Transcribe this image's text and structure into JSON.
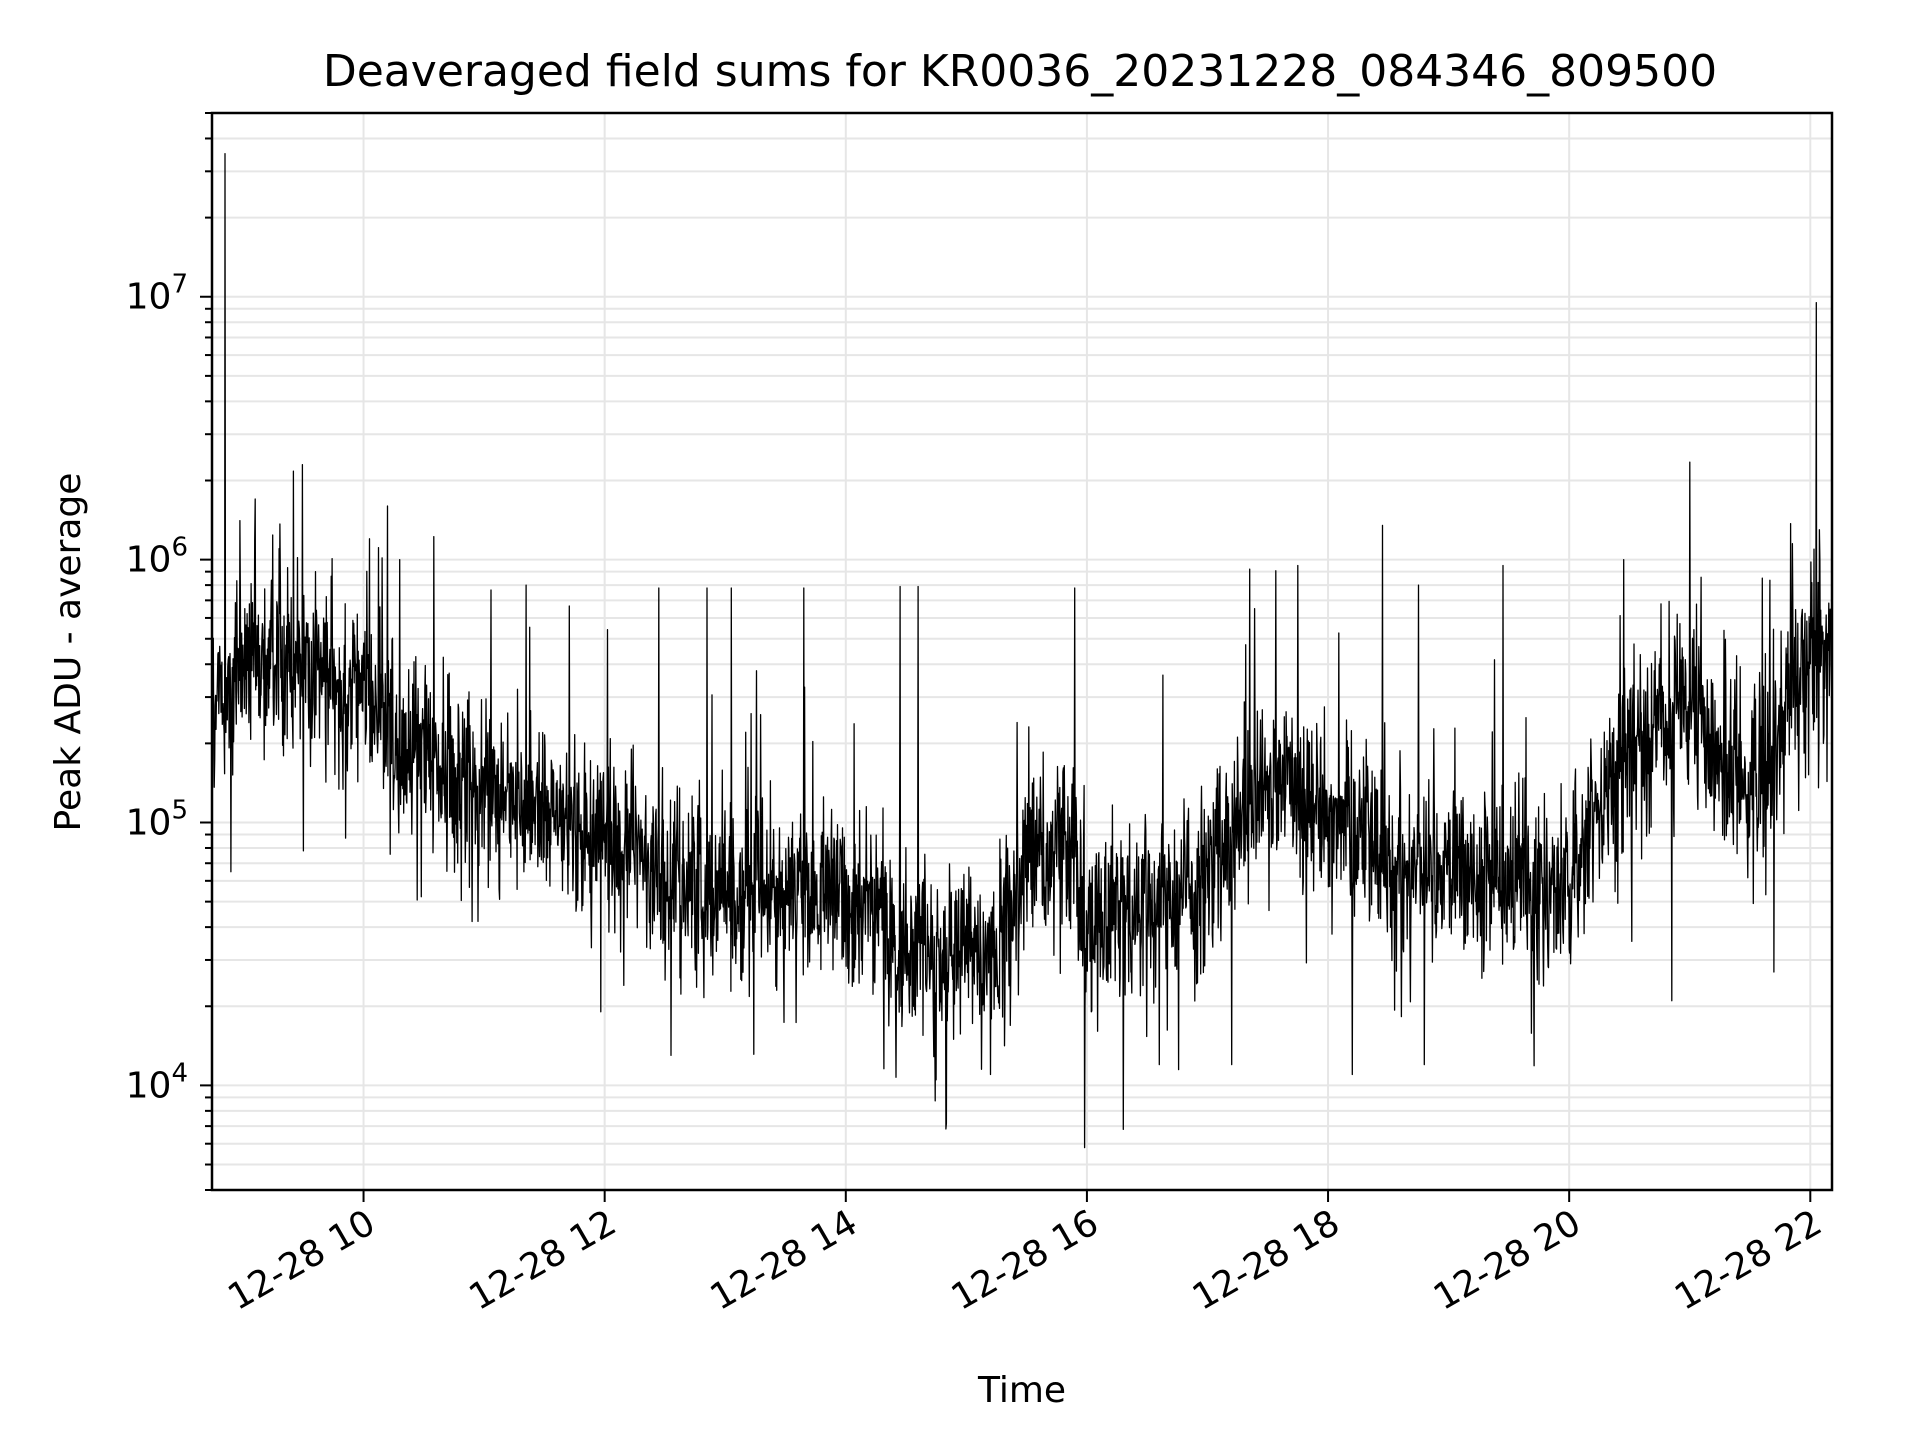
{
  "chart_data": {
    "type": "line",
    "title": "Deaveraged field sums for KR0036_20231228_084346_809500",
    "xlabel": "Time",
    "ylabel": "Peak ADU - average",
    "yscale": "log",
    "xlim": [
      8.743,
      22.18
    ],
    "ylim": [
      4000,
      50000000
    ],
    "grid": true,
    "x_ticks": [
      {
        "value": 10,
        "label": "12-28 10"
      },
      {
        "value": 12,
        "label": "12-28 12"
      },
      {
        "value": 14,
        "label": "12-28 14"
      },
      {
        "value": 16,
        "label": "12-28 16"
      },
      {
        "value": 18,
        "label": "12-28 18"
      },
      {
        "value": 20,
        "label": "12-28 20"
      },
      {
        "value": 22,
        "label": "12-28 22"
      }
    ],
    "y_ticks": [
      {
        "value": 10000,
        "base": "10",
        "exp": "4"
      },
      {
        "value": 100000,
        "base": "10",
        "exp": "5"
      },
      {
        "value": 1000000,
        "base": "10",
        "exp": "6"
      },
      {
        "value": 10000000,
        "base": "10",
        "exp": "7"
      }
    ],
    "series_style": {
      "color": "#000000"
    },
    "baseline": [
      [
        8.75,
        250000
      ],
      [
        9.0,
        400000
      ],
      [
        9.5,
        420000
      ],
      [
        10.0,
        300000
      ],
      [
        10.5,
        180000
      ],
      [
        11.0,
        130000
      ],
      [
        11.5,
        110000
      ],
      [
        12.0,
        90000
      ],
      [
        12.5,
        65000
      ],
      [
        13.0,
        55000
      ],
      [
        13.5,
        50000
      ],
      [
        14.0,
        55000
      ],
      [
        14.3,
        40000
      ],
      [
        14.7,
        32000
      ],
      [
        15.0,
        30000
      ],
      [
        15.3,
        35000
      ],
      [
        15.5,
        70000
      ],
      [
        15.9,
        90000
      ],
      [
        16.0,
        40000
      ],
      [
        16.3,
        45000
      ],
      [
        16.7,
        55000
      ],
      [
        17.0,
        60000
      ],
      [
        17.3,
        100000
      ],
      [
        17.6,
        150000
      ],
      [
        18.0,
        110000
      ],
      [
        18.5,
        75000
      ],
      [
        19.0,
        65000
      ],
      [
        19.5,
        60000
      ],
      [
        20.0,
        60000
      ],
      [
        20.3,
        130000
      ],
      [
        20.7,
        250000
      ],
      [
        21.0,
        260000
      ],
      [
        21.3,
        160000
      ],
      [
        21.6,
        130000
      ],
      [
        21.8,
        300000
      ],
      [
        22.18,
        500000
      ]
    ],
    "spikes": [
      [
        8.85,
        35000000
      ],
      [
        9.1,
        1700000
      ],
      [
        9.3,
        1100000
      ],
      [
        9.6,
        900000
      ],
      [
        10.05,
        1200000
      ],
      [
        10.2,
        1600000
      ],
      [
        10.3,
        1000000
      ],
      [
        11.35,
        800000
      ],
      [
        12.45,
        780000
      ],
      [
        12.85,
        780000
      ],
      [
        13.05,
        780000
      ],
      [
        13.65,
        780000
      ],
      [
        14.45,
        790000
      ],
      [
        14.6,
        790000
      ],
      [
        15.9,
        780000
      ],
      [
        17.35,
        920000
      ],
      [
        17.75,
        950000
      ],
      [
        18.45,
        1350000
      ],
      [
        18.75,
        800000
      ],
      [
        19.45,
        950000
      ],
      [
        20.45,
        1000000
      ],
      [
        21.0,
        2350000
      ],
      [
        21.6,
        850000
      ],
      [
        21.85,
        1150000
      ],
      [
        22.05,
        9500000
      ]
    ],
    "dips": [
      [
        8.9,
        65000
      ],
      [
        9.5,
        78000
      ],
      [
        10.9,
        42000
      ],
      [
        12.55,
        13000
      ],
      [
        14.75,
        10500
      ],
      [
        15.2,
        11000
      ],
      [
        15.98,
        5800
      ],
      [
        16.3,
        6800
      ],
      [
        16.6,
        12000
      ],
      [
        17.2,
        12000
      ],
      [
        18.2,
        11000
      ],
      [
        18.8,
        12000
      ],
      [
        20.85,
        21000
      ],
      [
        21.7,
        27000
      ]
    ]
  }
}
